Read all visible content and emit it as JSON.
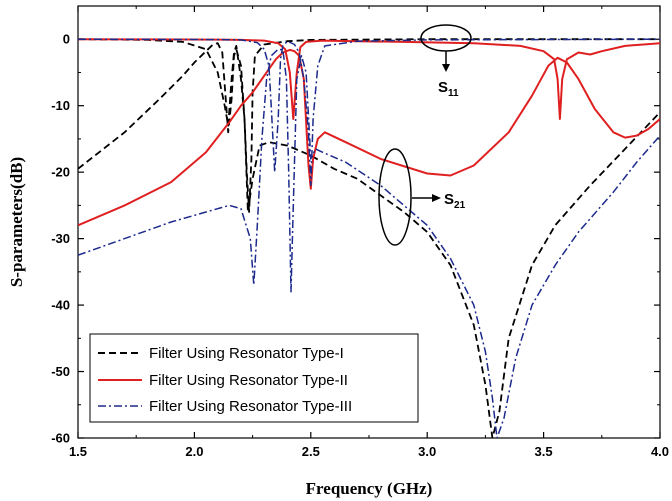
{
  "chart_data": {
    "type": "line",
    "xlabel": "Frequency (GHz)",
    "ylabel": "S-parameters(dB)",
    "xlim": [
      1.5,
      4.0
    ],
    "ylim": [
      -60,
      5
    ],
    "xticks": [
      "1.5",
      "2.0",
      "2.5",
      "3.0",
      "3.5",
      "4.0"
    ],
    "yticks": [
      "0",
      "-10",
      "-20",
      "-30",
      "-40",
      "-50",
      "-60"
    ],
    "grid": false,
    "legend_position": "bottom-left",
    "annotations": [
      {
        "main": "S",
        "sub": "11"
      },
      {
        "main": "S",
        "sub": "21"
      }
    ],
    "series": [
      {
        "name": "Filter Using Resonator Type-I",
        "color": "#000000",
        "style": "dashed",
        "S11": [
          [
            1.5,
            0
          ],
          [
            1.8,
            -0.1
          ],
          [
            1.95,
            -0.4
          ],
          [
            2.05,
            -1.5
          ],
          [
            2.1,
            -5
          ],
          [
            2.13,
            -10
          ],
          [
            2.145,
            -13
          ],
          [
            2.16,
            -6
          ],
          [
            2.17,
            -2
          ],
          [
            2.18,
            -1
          ],
          [
            2.2,
            -6
          ],
          [
            2.215,
            -12
          ],
          [
            2.225,
            -20
          ],
          [
            2.235,
            -26
          ],
          [
            2.245,
            -18
          ],
          [
            2.25,
            -8
          ],
          [
            2.26,
            -2.5
          ],
          [
            2.3,
            -0.8
          ],
          [
            2.4,
            -0.3
          ],
          [
            2.5,
            -0.1
          ],
          [
            3.0,
            0
          ],
          [
            4.0,
            0
          ]
        ],
        "S21": [
          [
            1.5,
            -19.5
          ],
          [
            1.7,
            -14
          ],
          [
            1.85,
            -9
          ],
          [
            1.95,
            -5.5
          ],
          [
            2.0,
            -3.5
          ],
          [
            2.05,
            -1.8
          ],
          [
            2.08,
            -0.8
          ],
          [
            2.1,
            -0.6
          ],
          [
            2.12,
            -2
          ],
          [
            2.145,
            -14
          ],
          [
            2.16,
            -9
          ],
          [
            2.17,
            -2.5
          ],
          [
            2.18,
            -1.5
          ],
          [
            2.2,
            -4
          ],
          [
            2.215,
            -12
          ],
          [
            2.23,
            -26
          ],
          [
            2.25,
            -21
          ],
          [
            2.28,
            -16
          ],
          [
            2.32,
            -15.5
          ],
          [
            2.4,
            -16
          ],
          [
            2.5,
            -17.5
          ],
          [
            2.6,
            -19.5
          ],
          [
            2.7,
            -21
          ],
          [
            2.8,
            -23.5
          ],
          [
            2.9,
            -26
          ],
          [
            3.0,
            -29
          ],
          [
            3.1,
            -34
          ],
          [
            3.2,
            -43
          ],
          [
            3.25,
            -52
          ],
          [
            3.28,
            -60
          ],
          [
            3.31,
            -56
          ],
          [
            3.35,
            -45
          ],
          [
            3.45,
            -34
          ],
          [
            3.55,
            -28
          ],
          [
            3.7,
            -22
          ],
          [
            3.85,
            -16.5
          ],
          [
            4.0,
            -11
          ]
        ]
      },
      {
        "name": "Filter Using Resonator Type-II",
        "color": "#e02020",
        "style": "solid",
        "S11": [
          [
            1.5,
            0
          ],
          [
            1.8,
            -0.02
          ],
          [
            2.1,
            -0.05
          ],
          [
            2.2,
            -0.1
          ],
          [
            2.3,
            -0.2
          ],
          [
            2.36,
            -0.6
          ],
          [
            2.39,
            -1.5
          ],
          [
            2.41,
            -5
          ],
          [
            2.425,
            -12
          ],
          [
            2.44,
            -5
          ],
          [
            2.455,
            -1.2
          ],
          [
            2.48,
            -0.4
          ],
          [
            2.55,
            -0.2
          ],
          [
            2.7,
            -0.3
          ],
          [
            2.9,
            -0.4
          ],
          [
            3.2,
            -0.6
          ],
          [
            3.4,
            -1
          ],
          [
            3.5,
            -1.8
          ],
          [
            3.545,
            -3
          ],
          [
            3.56,
            -6
          ],
          [
            3.57,
            -12
          ],
          [
            3.58,
            -6
          ],
          [
            3.6,
            -3
          ],
          [
            3.65,
            -2
          ],
          [
            3.7,
            -2.3
          ],
          [
            3.75,
            -1.8
          ],
          [
            3.85,
            -1
          ],
          [
            4.0,
            -0.6
          ]
        ],
        "S21": [
          [
            1.5,
            -28
          ],
          [
            1.7,
            -25
          ],
          [
            1.9,
            -21.5
          ],
          [
            2.05,
            -17
          ],
          [
            2.15,
            -12.5
          ],
          [
            2.2,
            -10
          ],
          [
            2.25,
            -8
          ],
          [
            2.3,
            -5.5
          ],
          [
            2.35,
            -3
          ],
          [
            2.38,
            -2
          ],
          [
            2.41,
            -1.6
          ],
          [
            2.43,
            -1.8
          ],
          [
            2.45,
            -2.5
          ],
          [
            2.47,
            -6
          ],
          [
            2.49,
            -19
          ],
          [
            2.5,
            -22.5
          ],
          [
            2.51,
            -18
          ],
          [
            2.53,
            -15
          ],
          [
            2.56,
            -14
          ],
          [
            2.65,
            -15.5
          ],
          [
            2.8,
            -18
          ],
          [
            3.0,
            -20.2
          ],
          [
            3.1,
            -20.5
          ],
          [
            3.2,
            -19
          ],
          [
            3.35,
            -14
          ],
          [
            3.45,
            -8.5
          ],
          [
            3.52,
            -4
          ],
          [
            3.56,
            -2.8
          ],
          [
            3.6,
            -3.5
          ],
          [
            3.65,
            -6
          ],
          [
            3.72,
            -10.5
          ],
          [
            3.8,
            -14
          ],
          [
            3.85,
            -14.8
          ],
          [
            3.9,
            -14.5
          ],
          [
            3.95,
            -13.5
          ],
          [
            4.0,
            -12
          ]
        ]
      },
      {
        "name": "Filter Using Resonator Type-III",
        "color": "#1c2a8c",
        "style": "dashdot",
        "S11": [
          [
            1.5,
            0
          ],
          [
            2.1,
            -0.05
          ],
          [
            2.2,
            -0.1
          ],
          [
            2.27,
            -0.5
          ],
          [
            2.3,
            -1.5
          ],
          [
            2.32,
            -4
          ],
          [
            2.33,
            -10
          ],
          [
            2.345,
            -20
          ],
          [
            2.36,
            -12
          ],
          [
            2.37,
            -3
          ],
          [
            2.38,
            -1
          ],
          [
            2.4,
            -0.3
          ],
          [
            2.43,
            -0.8
          ],
          [
            2.45,
            -2
          ],
          [
            2.47,
            -6
          ],
          [
            2.49,
            -14
          ],
          [
            2.5,
            -22
          ],
          [
            2.51,
            -12
          ],
          [
            2.53,
            -4
          ],
          [
            2.56,
            -1
          ],
          [
            2.7,
            -0.3
          ],
          [
            3.0,
            -0.1
          ],
          [
            4.0,
            0
          ]
        ],
        "S21": [
          [
            1.5,
            -32.5
          ],
          [
            1.7,
            -30
          ],
          [
            1.9,
            -27.5
          ],
          [
            2.05,
            -26
          ],
          [
            2.15,
            -25
          ],
          [
            2.2,
            -25.5
          ],
          [
            2.24,
            -30
          ],
          [
            2.255,
            -37
          ],
          [
            2.27,
            -28
          ],
          [
            2.29,
            -15
          ],
          [
            2.31,
            -6
          ],
          [
            2.33,
            -2.5
          ],
          [
            2.36,
            -1.5
          ],
          [
            2.38,
            -1.6
          ],
          [
            2.395,
            -6
          ],
          [
            2.405,
            -20
          ],
          [
            2.415,
            -38
          ],
          [
            2.425,
            -25
          ],
          [
            2.44,
            -6
          ],
          [
            2.46,
            -2.5
          ],
          [
            2.48,
            -5
          ],
          [
            2.5,
            -18
          ],
          [
            2.52,
            -16.5
          ],
          [
            2.55,
            -17
          ],
          [
            2.65,
            -18.5
          ],
          [
            2.8,
            -22
          ],
          [
            2.9,
            -25
          ],
          [
            3.0,
            -28
          ],
          [
            3.1,
            -33
          ],
          [
            3.2,
            -40
          ],
          [
            3.25,
            -47
          ],
          [
            3.28,
            -54
          ],
          [
            3.3,
            -60
          ],
          [
            3.33,
            -57
          ],
          [
            3.38,
            -48
          ],
          [
            3.45,
            -40
          ],
          [
            3.55,
            -34
          ],
          [
            3.65,
            -29
          ],
          [
            3.8,
            -23
          ],
          [
            3.9,
            -18.5
          ],
          [
            4.0,
            -14.5
          ]
        ]
      }
    ]
  }
}
